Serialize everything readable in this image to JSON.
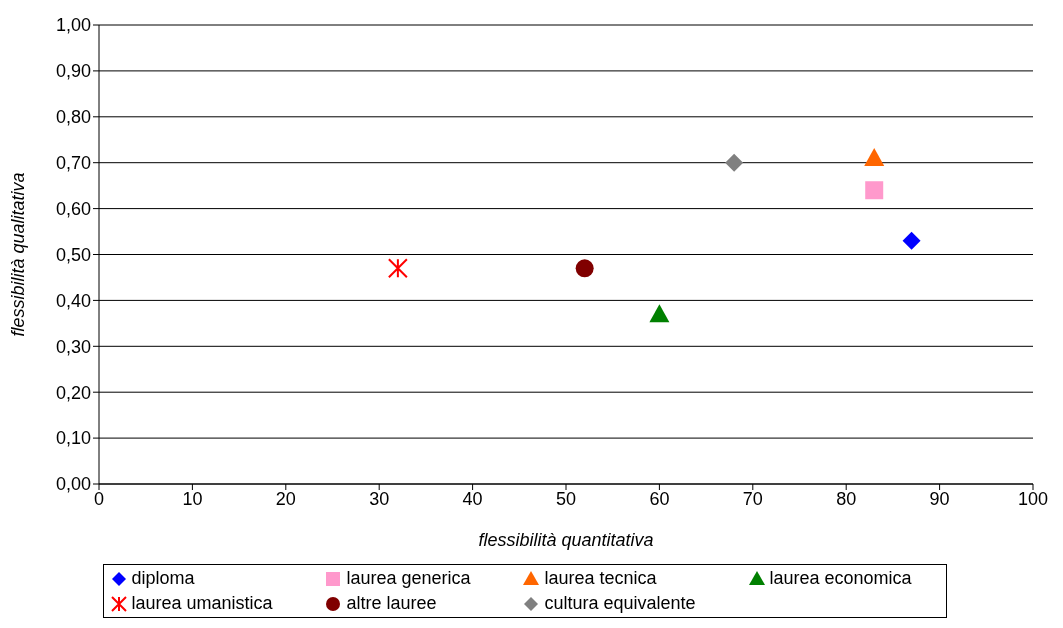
{
  "chart_data": {
    "type": "scatter",
    "xlabel": "flessibilità quantitativa",
    "ylabel": "flessibilità qualitativa",
    "xlim": [
      0,
      100
    ],
    "xticks": [
      0,
      10,
      20,
      30,
      40,
      50,
      60,
      70,
      80,
      90,
      100
    ],
    "ylim": [
      0,
      1
    ],
    "yticks": [
      {
        "value": 0,
        "label": "0,00"
      },
      {
        "value": 0.1,
        "label": "0,10"
      },
      {
        "value": 0.2,
        "label": "0,20"
      },
      {
        "value": 0.3,
        "label": "0,30"
      },
      {
        "value": 0.4,
        "label": "0,40"
      },
      {
        "value": 0.5,
        "label": "0,50"
      },
      {
        "value": 0.6,
        "label": "0,60"
      },
      {
        "value": 0.7,
        "label": "0,70"
      },
      {
        "value": 0.8,
        "label": "0,80"
      },
      {
        "value": 0.9,
        "label": "0,90"
      },
      {
        "value": 1,
        "label": "1,00"
      }
    ],
    "grid": "y",
    "legend": "bottom",
    "series": [
      {
        "name": "diploma",
        "color": "#0000ff",
        "marker": "diamond",
        "x": [
          87
        ],
        "values": [
          0.53
        ]
      },
      {
        "name": "laurea generica",
        "color": "#ff99cc",
        "marker": "square",
        "x": [
          83
        ],
        "values": [
          0.64
        ]
      },
      {
        "name": "laurea tecnica",
        "color": "#ff6600",
        "marker": "triangle",
        "x": [
          83
        ],
        "values": [
          0.71
        ]
      },
      {
        "name": "laurea economica",
        "color": "#008000",
        "marker": "triangle",
        "x": [
          60
        ],
        "values": [
          0.37
        ]
      },
      {
        "name": "laurea umanistica",
        "color": "#ff0000",
        "marker": "cross",
        "x": [
          32
        ],
        "values": [
          0.47
        ]
      },
      {
        "name": "altre lauree",
        "color": "#800000",
        "marker": "circle",
        "x": [
          52
        ],
        "values": [
          0.47
        ]
      },
      {
        "name": "cultura equivalente",
        "color": "#808080",
        "marker": "diamond",
        "x": [
          68
        ],
        "values": [
          0.7
        ]
      }
    ]
  }
}
